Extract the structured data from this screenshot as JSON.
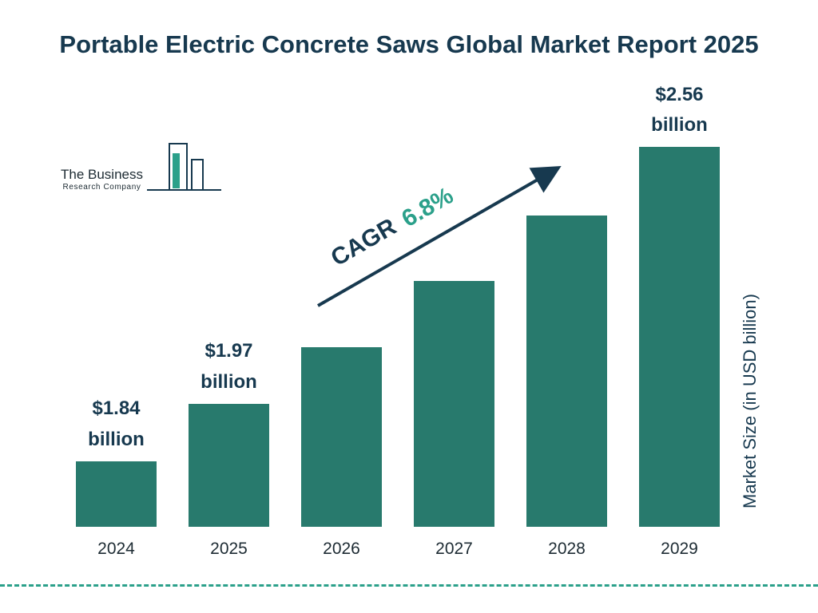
{
  "title": "Portable Electric Concrete Saws Global Market Report 2025",
  "logo": {
    "line1": "The Business",
    "line2": "Research Company"
  },
  "annotation": {
    "cagr_label": "CAGR",
    "cagr_value": "6.8%"
  },
  "y_axis_label": "Market Size (in USD billion)",
  "colors": {
    "bar": "#287a6d",
    "title": "#17394f",
    "accent_green": "#2ba08a",
    "arrow": "#17394f"
  },
  "chart_data": {
    "type": "bar",
    "title": "Portable Electric Concrete Saws Global Market Report 2025",
    "categories": [
      "2024",
      "2025",
      "2026",
      "2027",
      "2028",
      "2029"
    ],
    "values": [
      1.84,
      1.97,
      2.1,
      2.25,
      2.4,
      2.56
    ],
    "value_labels": [
      "$1.84 billion",
      "$1.97 billion",
      null,
      null,
      null,
      "$2.56 billion"
    ],
    "annotations": [
      "CAGR 6.8%"
    ],
    "xlabel": "",
    "ylabel": "Market Size (in USD billion)",
    "ylim": [
      1.69,
      2.56
    ],
    "grid": false,
    "legend": "none"
  }
}
